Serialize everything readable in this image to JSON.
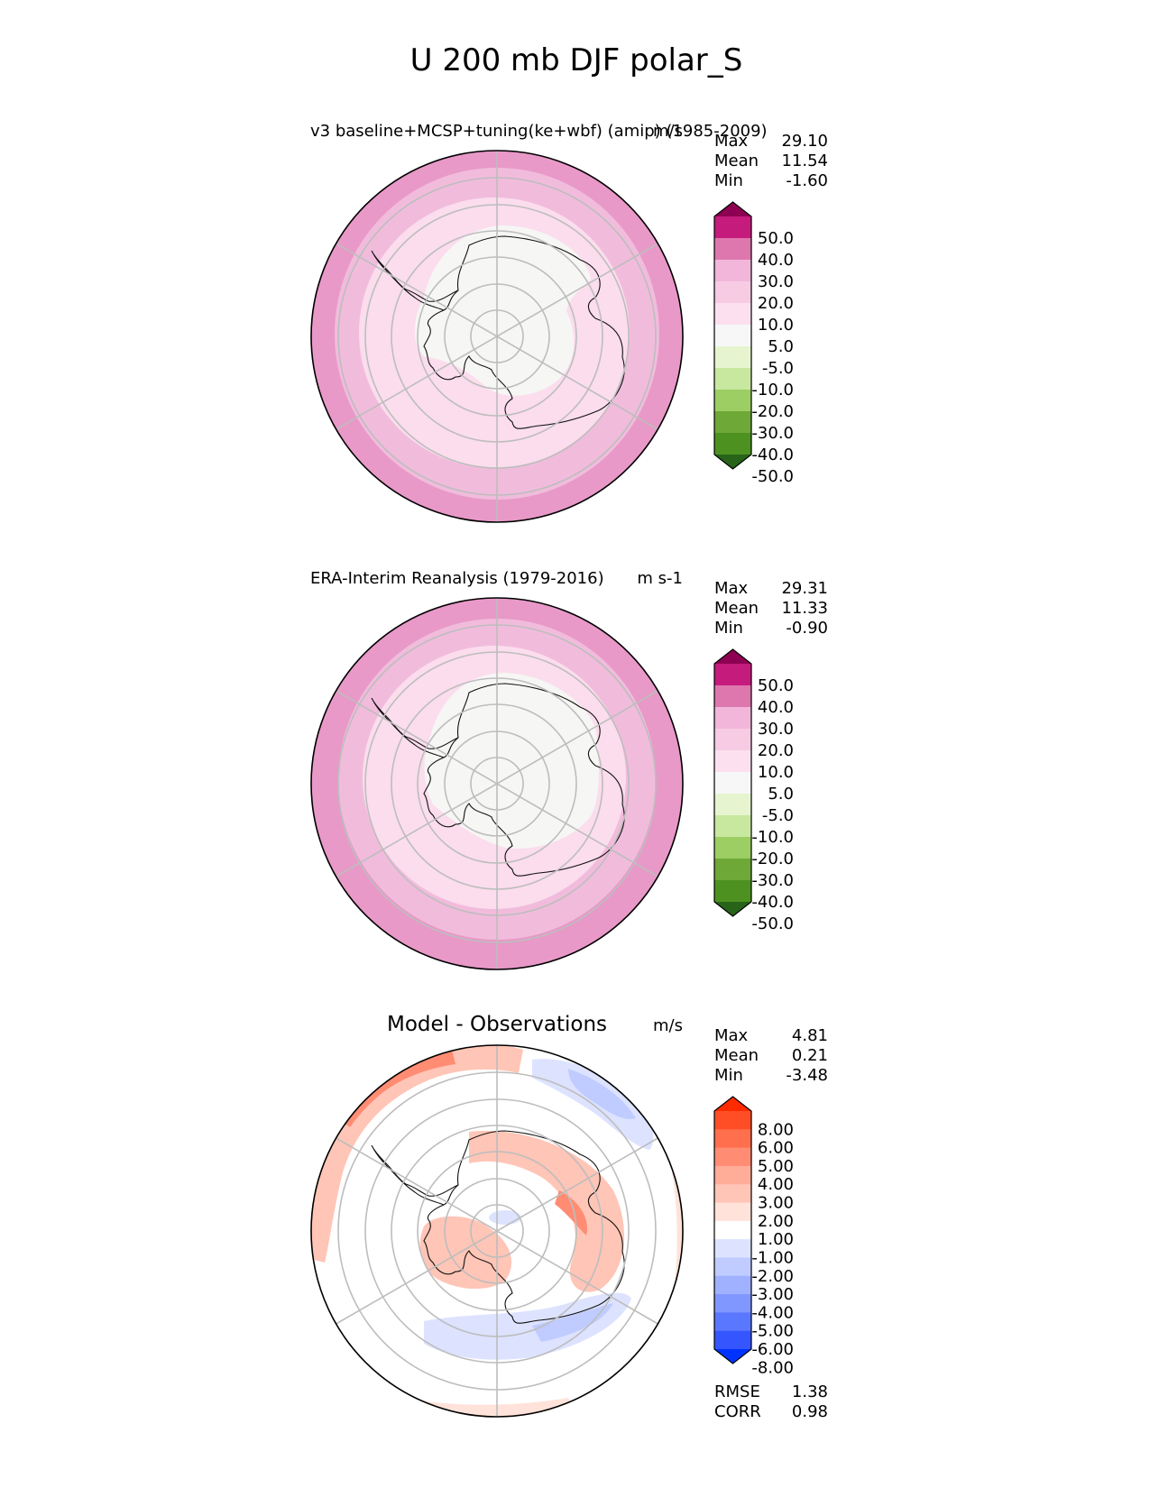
{
  "figure": {
    "title": "U 200 mb DJF polar_S"
  },
  "panels": [
    {
      "id": "test",
      "name": "v3 baseline+MCSP+tuning(ke+wbf) (amip) (1985-2009)",
      "units": "m/s",
      "stats": [
        {
          "label": "Max",
          "value": "29.10"
        },
        {
          "label": "Mean",
          "value": "11.54"
        },
        {
          "label": "Min",
          "value": "-1.60"
        }
      ],
      "colorbar": {
        "levels": [
          "50.0",
          "40.0",
          "30.0",
          "20.0",
          "10.0",
          "5.0",
          "-5.0",
          "-10.0",
          "-20.0",
          "-30.0",
          "-40.0",
          "-50.0"
        ],
        "colors": [
          "#8e0152",
          "#c51b7d",
          "#de77ae",
          "#f1b6da",
          "#f7cbe4",
          "#fde0ef",
          "#f7f7f7",
          "#e6f5d0",
          "#c8e8a0",
          "#9cce63",
          "#6ea837",
          "#4d9221",
          "#276419"
        ]
      },
      "map": {
        "rings": [
          {
            "inner": 0.87,
            "color": "#e899c8"
          },
          {
            "inner": 0.73,
            "color": "#f1bcdc"
          },
          {
            "inner": 0.58,
            "color": "#fbdded"
          },
          {
            "inner": 0.0,
            "color": "#f6f6f4"
          }
        ]
      }
    },
    {
      "id": "ref",
      "name": "ERA-Interim Reanalysis (1979-2016)",
      "units": "m s-1",
      "stats": [
        {
          "label": "Max",
          "value": "29.31"
        },
        {
          "label": "Mean",
          "value": "11.33"
        },
        {
          "label": "Min",
          "value": "-0.90"
        }
      ],
      "colorbar": {
        "levels": [
          "50.0",
          "40.0",
          "30.0",
          "20.0",
          "10.0",
          "5.0",
          "-5.0",
          "-10.0",
          "-20.0",
          "-30.0",
          "-40.0",
          "-50.0"
        ],
        "colors": [
          "#8e0152",
          "#c51b7d",
          "#de77ae",
          "#f1b6da",
          "#f7cbe4",
          "#fde0ef",
          "#f7f7f7",
          "#e6f5d0",
          "#c8e8a0",
          "#9cce63",
          "#6ea837",
          "#4d9221",
          "#276419"
        ]
      },
      "map": {
        "rings": [
          {
            "inner": 0.84,
            "color": "#e899c8"
          },
          {
            "inner": 0.69,
            "color": "#f1bcdc"
          },
          {
            "inner": 0.55,
            "color": "#fbdded"
          },
          {
            "inner": 0.0,
            "color": "#f6f6f4"
          }
        ]
      }
    },
    {
      "id": "diff",
      "name": "Model - Observations",
      "units": "m/s",
      "stats": [
        {
          "label": "Max",
          "value": "4.81"
        },
        {
          "label": "Mean",
          "value": "0.21"
        },
        {
          "label": "Min",
          "value": "-3.48"
        }
      ],
      "extra_stats": [
        {
          "label": "RMSE",
          "value": "1.38"
        },
        {
          "label": "CORR",
          "value": "0.98"
        }
      ],
      "colorbar": {
        "levels": [
          "8.00",
          "6.00",
          "5.00",
          "4.00",
          "3.00",
          "2.00",
          "1.00",
          "-1.00",
          "-2.00",
          "-3.00",
          "-4.00",
          "-5.00",
          "-6.00",
          "-8.00"
        ],
        "colors": [
          "#ff2a00",
          "#ff4e26",
          "#ff6e4d",
          "#ff8c73",
          "#ffac99",
          "#ffc5b6",
          "#ffe2d9",
          "#ffffff",
          "#dde3ff",
          "#c0ccff",
          "#a0b2ff",
          "#7f97ff",
          "#5a78ff",
          "#3556ff",
          "#0033ff"
        ]
      }
    }
  ]
}
